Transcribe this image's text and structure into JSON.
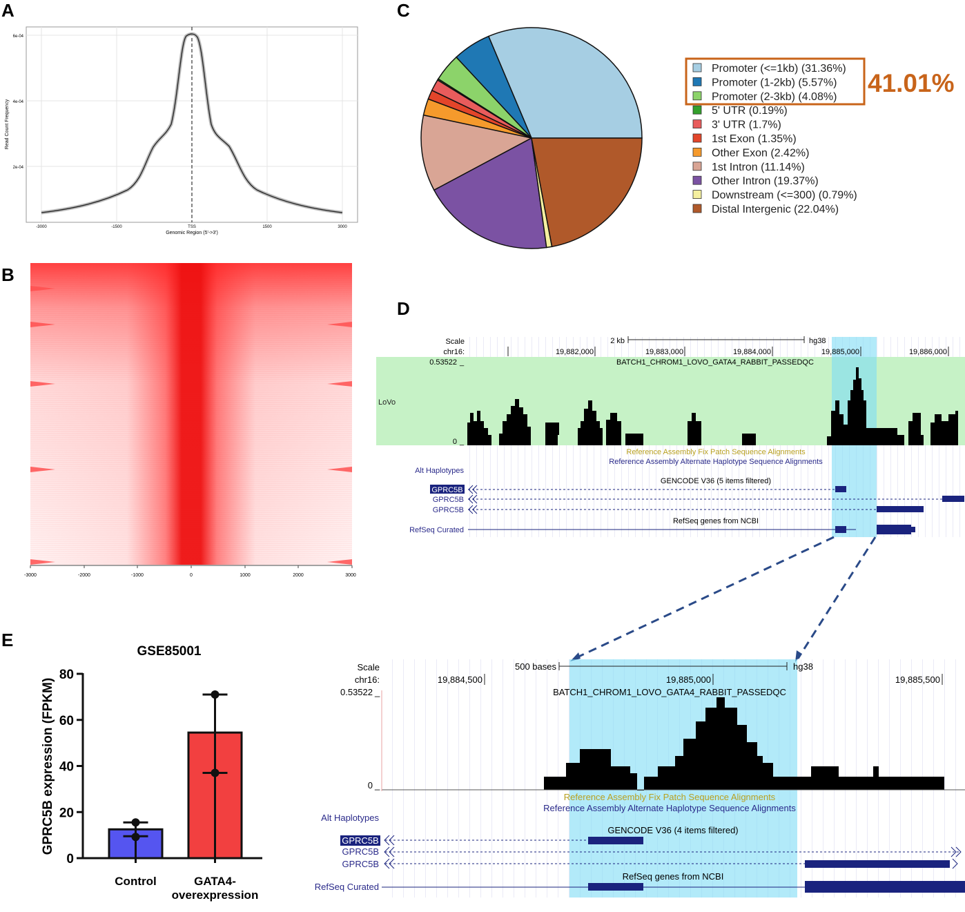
{
  "panels": {
    "a": "A",
    "b": "B",
    "c": "C",
    "d": "D",
    "e": "E"
  },
  "panel_a": {
    "ylabel": "Read Count Frequency",
    "xlabel": "Genomic Region (5'->3')",
    "yticks": [
      "2e-04",
      "4e-04",
      "6e-04"
    ],
    "xticks": [
      "-3000",
      "-1500",
      "TSS",
      "1500",
      "3000"
    ]
  },
  "panel_b": {
    "xticks": [
      "-3000",
      "-2000",
      "-1000",
      "0",
      "1000",
      "2000",
      "3000"
    ]
  },
  "panel_c": {
    "highlight": "41.01%",
    "highlight_color": "#c8641a",
    "legend": [
      {
        "label": "Promoter (<=1kb) (31.36%)",
        "color": "#a6cee3"
      },
      {
        "label": "Promoter (1-2kb) (5.57%)",
        "color": "#1f78b4"
      },
      {
        "label": "Promoter (2-3kb) (4.08%)",
        "color": "#8cd36a"
      },
      {
        "label": "5' UTR (0.19%)",
        "color": "#33a02c"
      },
      {
        "label": "3' UTR (1.7%)",
        "color": "#e85c5c"
      },
      {
        "label": "1st Exon (1.35%)",
        "color": "#e3452a"
      },
      {
        "label": "Other Exon (2.42%)",
        "color": "#f59a2c"
      },
      {
        "label": "1st Intron (11.14%)",
        "color": "#d9a595"
      },
      {
        "label": "Other Intron (19.37%)",
        "color": "#7b52a3"
      },
      {
        "label": "Downstream (<=300) (0.79%)",
        "color": "#f5f0a0"
      },
      {
        "label": "Distal Intergenic (22.04%)",
        "color": "#b0592a"
      }
    ]
  },
  "panel_d": {
    "scale": "Scale",
    "chr": "chr16:",
    "scale_top": "2 kb",
    "hg": "hg38",
    "pos_top": [
      "19,882,000",
      "19,883,000",
      "19,884,000",
      "19,885,000",
      "19,886,000"
    ],
    "track_max": "0.53522",
    "track_zero": "0",
    "track_name": "BATCH1_CHROM1_LOVO_GATA4_RABBIT_PASSEDQC",
    "lovo": "LoVo",
    "fix_patch": "Reference Assembly Fix Patch Sequence Alignments",
    "alt_hap_title": "Reference Assembly Alternate Haplotype Sequence Alignments",
    "alt_hap": "Alt Haplotypes",
    "gencode_top": "GENCODE V36 (5 items filtered)",
    "gencode_bottom": "GENCODE V36 (4 items filtered)",
    "gene": "GPRC5B",
    "refseq_title": "RefSeq genes from NCBI",
    "refseq": "RefSeq Curated",
    "scale_bottom": "500 bases",
    "pos_bottom": [
      "19,884,500",
      "19,885,000",
      "19,885,500"
    ]
  },
  "chart_data": {
    "type": "bar",
    "title": "GSE85001",
    "categories": [
      "Control",
      "GATA4-\noverexpression"
    ],
    "category_lines": [
      [
        "Control"
      ],
      [
        "GATA4-",
        "overexpression"
      ]
    ],
    "values": [
      12.5,
      54.5
    ],
    "errors": [
      [
        9.5,
        15.5
      ],
      [
        37,
        71
      ]
    ],
    "points": [
      [
        9.2,
        15.5
      ],
      [
        37,
        71
      ]
    ],
    "colors": [
      "#5555f0",
      "#f24040"
    ],
    "ylabel": "GPRC5B expression (FPKM)",
    "ylim": [
      0,
      80
    ],
    "yticks": [
      "0",
      "20",
      "40",
      "60",
      "80"
    ],
    "xlabel": ""
  }
}
